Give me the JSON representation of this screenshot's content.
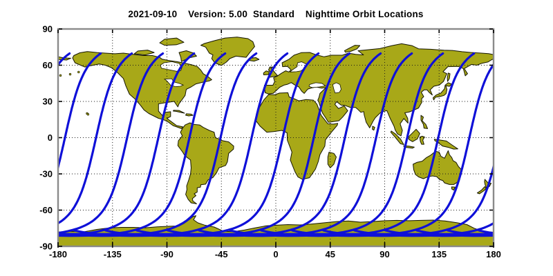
{
  "title": "2021-09-10    Version: 5.00  Standard    Nighttime Orbit Locations",
  "chart_data": {
    "type": "line",
    "subtype": "satellite-nighttime-orbit-ground-tracks-on-world-map",
    "title": "2021-09-10    Version: 5.00  Standard    Nighttime Orbit Locations",
    "projection": "equirectangular",
    "x_axis": {
      "min": -180,
      "max": 180,
      "grid_step": 45,
      "tick_values": [
        -180,
        -135,
        -90,
        -45,
        0,
        45,
        90,
        135,
        180
      ],
      "tick_labels": [
        "-180",
        "-135",
        "-90",
        "-45",
        "0",
        "45",
        "90",
        "135",
        "180"
      ]
    },
    "y_axis": {
      "min": -90,
      "max": 90,
      "grid_step": 30,
      "tick_values": [
        90,
        60,
        30,
        0,
        -30,
        -60,
        -90
      ],
      "tick_labels": [
        "90",
        "60",
        "30",
        "0",
        "-30",
        "-60",
        "-90"
      ]
    },
    "grid": {
      "style": "dotted",
      "color": "#1a1a1a",
      "lon_lines": [
        -135,
        -90,
        -45,
        0,
        45,
        90,
        135
      ],
      "lat_lines": [
        -60,
        -30,
        0,
        30,
        60
      ]
    },
    "series": [
      {
        "name": "nighttime orbit ground tracks",
        "count": 14,
        "equator_crossing_lons_deg": [
          -174.3,
          -148.6,
          -122.9,
          -97.1,
          -71.4,
          -45.7,
          -20.0,
          5.7,
          31.4,
          57.1,
          82.9,
          108.6,
          134.3,
          160.0
        ],
        "inclination_deg": 98.7,
        "earth_rotation_per_orbit_deg": 25.44,
        "lat_top_cutoff_deg": 70,
        "lat_bottom_turn_deg": -81.3,
        "polar_overlap_band_lat_deg": -80.2,
        "color": "#0f10d8",
        "line_width": 3.2
      }
    ],
    "map_colors": {
      "land": "#a8a818",
      "coast": "#141400",
      "water": "#ffffff"
    },
    "frame_color": "#8a8a8a",
    "tick_color": "#000000",
    "legend": "none"
  }
}
